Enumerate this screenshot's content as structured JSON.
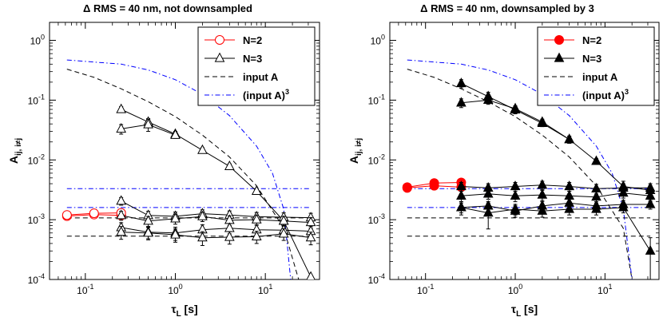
{
  "chart_data": [
    {
      "type": "line",
      "title": "Δ RMS = 40 nm, not downsampled",
      "xlabel": "τ_L [s]",
      "ylabel": "A_ij, i≠j",
      "xscale": "log",
      "yscale": "log",
      "xlim": [
        0.04,
        40
      ],
      "ylim": [
        0.0001,
        2
      ],
      "xticks": [
        {
          "v": 0.1,
          "label": "10",
          "exp": "-1"
        },
        {
          "v": 1,
          "label": "10",
          "exp": "0"
        },
        {
          "v": 10,
          "label": "10",
          "exp": "1"
        }
      ],
      "yticks": [
        {
          "v": 0.0001,
          "label": "10",
          "exp": "-4"
        },
        {
          "v": 0.001,
          "label": "10",
          "exp": "-3"
        },
        {
          "v": 0.01,
          "label": "10",
          "exp": "-2"
        },
        {
          "v": 0.1,
          "label": "10",
          "exp": "-1"
        },
        {
          "v": 1,
          "label": "10",
          "exp": "0"
        }
      ],
      "legend_position": "top-right",
      "legend": [
        {
          "label": "N=2",
          "sup": "",
          "color": "#ff0000",
          "marker": "circle-open",
          "dash": ""
        },
        {
          "label": "N=3",
          "sup": "",
          "color": "#000000",
          "marker": "triangle-open",
          "dash": ""
        },
        {
          "label": "input A",
          "sup": "",
          "color": "#000000",
          "marker": "",
          "dash": "6,4"
        },
        {
          "label": "(input A)",
          "sup": "3",
          "color": "#0000ff",
          "marker": "",
          "dash": "6,3,1.5,3"
        }
      ],
      "series": [
        {
          "color": "#ff0000",
          "marker": "circle-open",
          "x": [
            0.0625,
            0.125,
            0.25
          ],
          "y": [
            0.00115,
            0.00122,
            0.00118
          ],
          "err": [
            6e-05,
            8e-05,
            8e-05
          ]
        },
        {
          "color": "#ff0000",
          "marker": "circle-open",
          "x": [
            0.0625,
            0.125,
            0.25
          ],
          "y": [
            0.0012,
            0.00128,
            0.0013
          ],
          "err": [
            6e-05,
            8e-05,
            8e-05
          ]
        },
        {
          "color": "#000000",
          "marker": "triangle-open",
          "x": [
            0.25,
            0.5,
            1,
            2,
            4,
            8,
            16,
            32
          ],
          "y": [
            0.07,
            0.043,
            0.027,
            0.0145,
            0.0078,
            0.003,
            0.00095,
            0.00011
          ],
          "err": [
            0.008,
            0.006,
            0.003,
            0.0015,
            0.0008,
            0.0003,
            0.00015,
            0
          ]
        },
        {
          "color": "#000000",
          "marker": "triangle-open",
          "x": [
            0.25,
            0.5,
            1
          ],
          "y": [
            0.033,
            0.039,
            0.026
          ],
          "err": [
            0.006,
            0.009,
            0.003
          ]
        },
        {
          "color": "#000000",
          "marker": "triangle-open",
          "x": [
            0.25,
            0.5,
            1,
            2,
            4,
            8,
            16,
            32
          ],
          "y": [
            0.00205,
            0.00118,
            0.00114,
            0.00126,
            0.0012,
            0.00112,
            0.0011,
            0.00108
          ],
          "err": [
            0.0003,
            0.0002,
            0.0002,
            0.0002,
            0.0002,
            0.0002,
            0.0002,
            0.0002
          ]
        },
        {
          "color": "#000000",
          "marker": "triangle-open",
          "x": [
            0.25,
            0.5,
            1,
            2,
            4,
            8,
            16,
            32
          ],
          "y": [
            0.00118,
            0.00095,
            0.00104,
            0.00113,
            0.00098,
            0.001,
            0.00095,
            0.0009
          ],
          "err": [
            0.0002,
            0.00018,
            0.0002,
            0.0002,
            0.00018,
            0.00018,
            0.00018,
            0.00018
          ]
        },
        {
          "color": "#000000",
          "marker": "triangle-open",
          "x": [
            0.25,
            0.5,
            1,
            2,
            4,
            8,
            16,
            32
          ],
          "y": [
            0.00074,
            0.00062,
            0.0006,
            0.00068,
            0.00072,
            0.00068,
            0.00067,
            0.00064
          ],
          "err": [
            0.00015,
            0.00014,
            0.00015,
            0.00014,
            0.00014,
            0.00013,
            0.00013,
            0.00013
          ]
        },
        {
          "color": "#000000",
          "marker": "triangle-open",
          "x": [
            0.25,
            0.5,
            1,
            2,
            4,
            8,
            16,
            32
          ],
          "y": [
            0.00062,
            0.0006,
            0.00056,
            0.0005,
            0.00051,
            0.00052,
            0.00058,
            0.0005
          ],
          "err": [
            0.00015,
            0.00014,
            0.00014,
            0.00013,
            0.00012,
            0.00012,
            0.00013,
            0.00012
          ]
        }
      ],
      "reference_lines": [
        {
          "color": "#000000",
          "dash": "6,4",
          "x": [
            0.0625,
            0.125,
            0.25,
            0.5,
            1,
            2,
            4,
            8,
            16,
            32
          ],
          "y": [
            0.33,
            0.24,
            0.155,
            0.094,
            0.053,
            0.026,
            0.0112,
            0.0037,
            0.00072,
            2e-05
          ]
        },
        {
          "color": "#0000ff",
          "dash": "6,3,1.5,3",
          "x": [
            0.0625,
            0.25,
            0.5,
            1,
            2,
            4,
            8,
            12,
            16,
            20
          ],
          "y": [
            0.47,
            0.4,
            0.32,
            0.22,
            0.125,
            0.055,
            0.017,
            0.006,
            0.0015,
            5e-05
          ]
        },
        {
          "color": "#000000",
          "dash": "6,4",
          "x": [
            0.0625,
            32
          ],
          "y": [
            0.00053,
            0.00053
          ]
        },
        {
          "color": "#000000",
          "dash": "6,4",
          "x": [
            0.0625,
            32
          ],
          "y": [
            0.00107,
            0.00107
          ]
        },
        {
          "color": "#0000ff",
          "dash": "6,3,1.5,3",
          "x": [
            0.0625,
            32
          ],
          "y": [
            0.0016,
            0.0016
          ]
        },
        {
          "color": "#0000ff",
          "dash": "6,3,1.5,3",
          "x": [
            0.0625,
            32
          ],
          "y": [
            0.0033,
            0.0033
          ]
        }
      ]
    },
    {
      "type": "line",
      "title": "Δ RMS = 40 nm, downsampled by 3",
      "xlabel": "τ_L [s]",
      "ylabel": "A_ij, i≠j",
      "xscale": "log",
      "yscale": "log",
      "xlim": [
        0.04,
        40
      ],
      "ylim": [
        0.0001,
        2
      ],
      "xticks": [
        {
          "v": 0.1,
          "label": "10",
          "exp": "-1"
        },
        {
          "v": 1,
          "label": "10",
          "exp": "0"
        },
        {
          "v": 10,
          "label": "10",
          "exp": "1"
        }
      ],
      "yticks": [
        {
          "v": 0.0001,
          "label": "10",
          "exp": "-4"
        },
        {
          "v": 0.001,
          "label": "10",
          "exp": "-3"
        },
        {
          "v": 0.01,
          "label": "10",
          "exp": "-2"
        },
        {
          "v": 0.1,
          "label": "10",
          "exp": "-1"
        },
        {
          "v": 1,
          "label": "10",
          "exp": "0"
        }
      ],
      "legend_position": "top-right",
      "legend": [
        {
          "label": "N=2",
          "sup": "",
          "color": "#ff0000",
          "marker": "circle-filled",
          "dash": ""
        },
        {
          "label": "N=3",
          "sup": "",
          "color": "#000000",
          "marker": "triangle-filled",
          "dash": ""
        },
        {
          "label": "input A",
          "sup": "",
          "color": "#000000",
          "marker": "",
          "dash": "6,4"
        },
        {
          "label": "(input A)",
          "sup": "3",
          "color": "#0000ff",
          "marker": "",
          "dash": "6,3,1.5,3"
        }
      ],
      "series": [
        {
          "color": "#ff0000",
          "marker": "circle-filled",
          "x": [
            0.0625,
            0.125,
            0.25
          ],
          "y": [
            0.0034,
            0.0037,
            0.0035
          ],
          "err": [
            0.0002,
            0.0003,
            0.0003
          ]
        },
        {
          "color": "#ff0000",
          "marker": "circle-filled",
          "x": [
            0.0625,
            0.125,
            0.25
          ],
          "y": [
            0.0035,
            0.0041,
            0.0042
          ],
          "err": [
            0.0002,
            0.0003,
            0.0003
          ]
        },
        {
          "color": "#000000",
          "marker": "triangle-filled",
          "x": [
            0.25,
            0.5,
            1,
            2,
            4,
            8,
            16,
            32
          ],
          "y": [
            0.19,
            0.115,
            0.069,
            0.041,
            0.022,
            0.0095,
            0.0036,
            0.0031
          ],
          "err": [
            0.03,
            0.02,
            0.01,
            0.005,
            0.003,
            0.001,
            0.0008,
            0.0006
          ]
        },
        {
          "color": "#000000",
          "marker": "triangle-filled",
          "x": [
            0.25,
            0.5,
            1,
            2,
            4
          ],
          "y": [
            0.09,
            0.1,
            0.072,
            0.043,
            0.022
          ],
          "err": [
            0.015,
            0.015,
            0.008,
            0.005,
            0.003
          ]
        },
        {
          "color": "#000000",
          "marker": "triangle-filled",
          "x": [
            0.25,
            0.5,
            1,
            2,
            4,
            8,
            16,
            32
          ],
          "y": [
            0.0036,
            0.0034,
            0.0036,
            0.0038,
            0.0036,
            0.0033,
            0.0034,
            0.0034
          ],
          "err": [
            0.0006,
            0.0006,
            0.0006,
            0.0006,
            0.0006,
            0.0006,
            0.0006,
            0.0006
          ]
        },
        {
          "color": "#000000",
          "marker": "triangle-filled",
          "x": [
            0.25,
            0.5,
            1,
            2,
            4,
            8,
            16,
            32
          ],
          "y": [
            0.0025,
            0.0027,
            0.0025,
            0.0026,
            0.0025,
            0.0024,
            0.0028,
            0.0025
          ],
          "err": [
            0.0005,
            0.0005,
            0.0005,
            0.0005,
            0.0005,
            0.0005,
            0.0005,
            0.0005
          ]
        },
        {
          "color": "#000000",
          "marker": "triangle-filled",
          "x": [
            0.25,
            0.5,
            1,
            2,
            4,
            8,
            16,
            32
          ],
          "y": [
            0.0016,
            0.0017,
            0.0014,
            0.0017,
            0.0019,
            0.0017,
            0.0018,
            0.0018
          ],
          "err": [
            0.0004,
            0.0003,
            0.0003,
            0.0003,
            0.0003,
            0.0003,
            0.0003,
            0.0003
          ]
        },
        {
          "color": "#000000",
          "marker": "triangle-filled",
          "x": [
            0.25,
            0.5,
            1,
            2,
            4,
            8,
            16,
            32
          ],
          "y": [
            0.0016,
            0.0013,
            0.0015,
            0.0014,
            0.0015,
            0.0015,
            0.0016,
            0.0003
          ],
          "err": [
            0.0003,
            0.0006,
            0.0003,
            0.0003,
            0.0003,
            0.0003,
            0.0003,
            0.0002
          ]
        }
      ],
      "reference_lines": [
        {
          "color": "#000000",
          "dash": "6,4",
          "x": [
            0.0625,
            0.125,
            0.25,
            0.5,
            1,
            2,
            4,
            8,
            16,
            20
          ],
          "y": [
            0.33,
            0.24,
            0.155,
            0.094,
            0.053,
            0.026,
            0.0112,
            0.0037,
            0.00072,
            0.0001
          ]
        },
        {
          "color": "#0000ff",
          "dash": "6,3,1.5,3",
          "x": [
            0.0625,
            0.25,
            0.5,
            1,
            2,
            4,
            8,
            12,
            16,
            20
          ],
          "y": [
            0.47,
            0.4,
            0.32,
            0.22,
            0.125,
            0.055,
            0.017,
            0.006,
            0.0015,
            0.0001
          ]
        },
        {
          "color": "#000000",
          "dash": "6,4",
          "x": [
            0.0625,
            32
          ],
          "y": [
            0.00053,
            0.00053
          ]
        },
        {
          "color": "#000000",
          "dash": "6,4",
          "x": [
            0.0625,
            32
          ],
          "y": [
            0.00107,
            0.00107
          ]
        },
        {
          "color": "#0000ff",
          "dash": "6,3,1.5,3",
          "x": [
            0.0625,
            32
          ],
          "y": [
            0.0016,
            0.0016
          ]
        },
        {
          "color": "#0000ff",
          "dash": "6,3,1.5,3",
          "x": [
            0.0625,
            32
          ],
          "y": [
            0.0033,
            0.0033
          ]
        }
      ]
    }
  ]
}
